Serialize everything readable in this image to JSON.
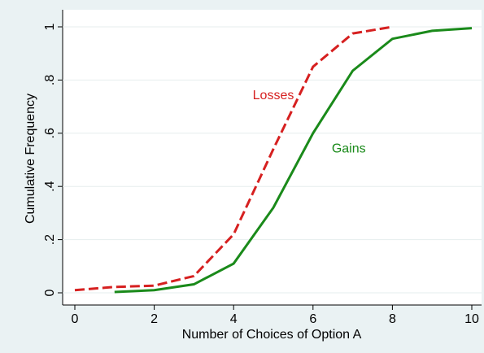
{
  "chart_data": {
    "type": "line",
    "x_label": "Number of Choices of Option A",
    "y_label": "Cumulative Frequency",
    "xlim": [
      0,
      10
    ],
    "xticks": [
      0,
      2,
      4,
      6,
      8,
      10
    ],
    "ylim": [
      0,
      1
    ],
    "yticks": [
      0,
      {
        "value": 0.2,
        "label": ".2"
      },
      {
        "value": 0.4,
        "label": ".4"
      },
      {
        "value": 0.6,
        "label": ".6"
      },
      {
        "value": 0.8,
        "label": ".8"
      },
      1
    ],
    "grid": true,
    "series": [
      {
        "name": "Losses",
        "color": "#d62020",
        "dashed": true,
        "x": [
          0,
          1,
          2,
          3,
          4,
          5,
          6,
          7,
          8
        ],
        "values": [
          0.01,
          0.022,
          0.027,
          0.063,
          0.22,
          0.54,
          0.85,
          0.975,
          1.0
        ]
      },
      {
        "name": "Gains",
        "color": "#1a8a1a",
        "dashed": false,
        "x": [
          1,
          2,
          3,
          4,
          5,
          6,
          7,
          8,
          9,
          10
        ],
        "values": [
          0.003,
          0.01,
          0.032,
          0.11,
          0.32,
          0.6,
          0.835,
          0.955,
          0.985,
          0.995
        ]
      }
    ],
    "annotations": [
      {
        "text": "Losses",
        "x": 5,
        "y": 0.74,
        "color": "#d62020"
      },
      {
        "text": "Gains",
        "x": 6.9,
        "y": 0.54,
        "color": "#1a8a1a"
      }
    ]
  }
}
